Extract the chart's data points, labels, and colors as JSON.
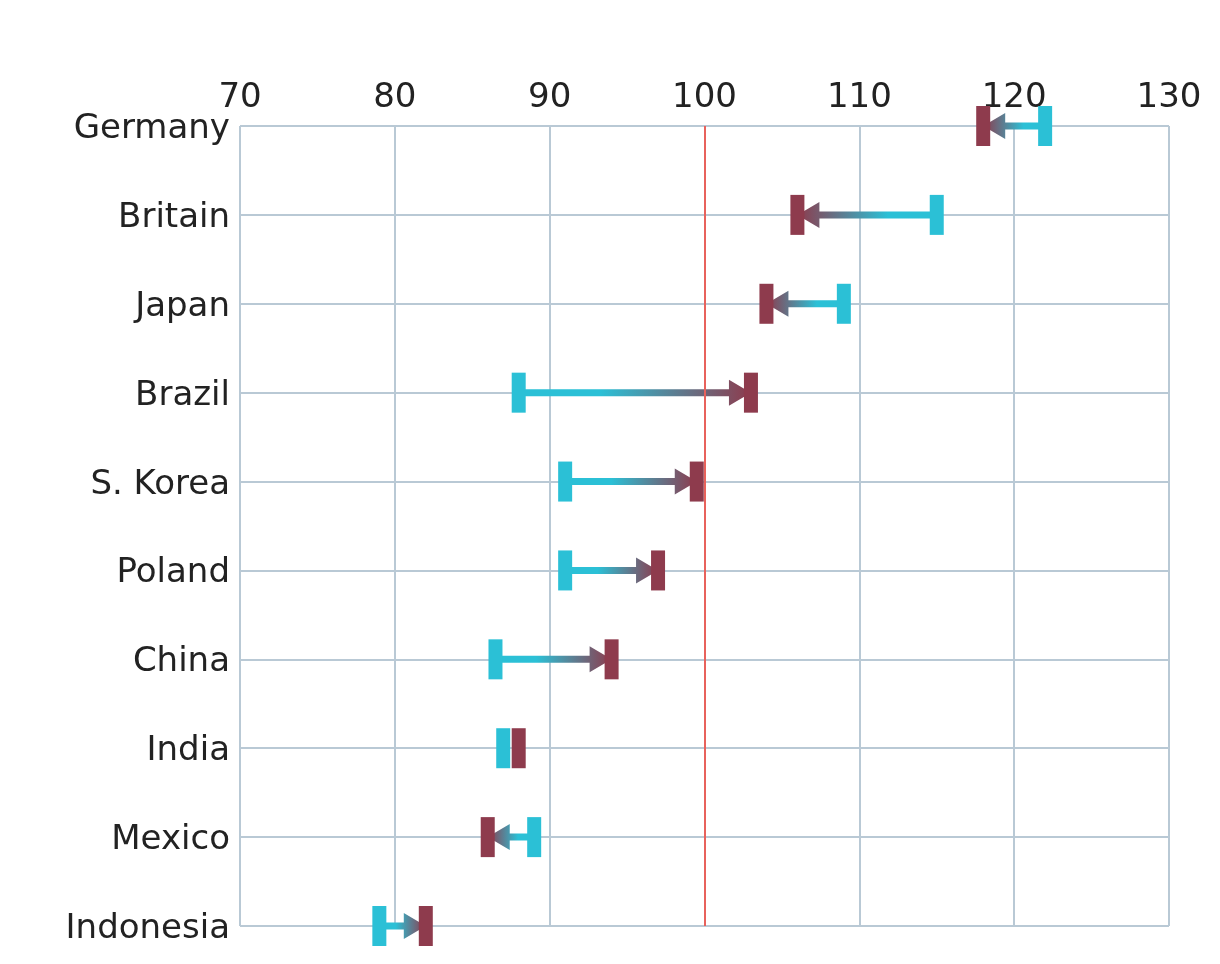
{
  "chart_data": {
    "type": "scatter",
    "orientation": "horizontal",
    "categories": [
      "Germany",
      "Britain",
      "Japan",
      "Brazil",
      "S. Korea",
      "Poland",
      "China",
      "India",
      "Mexico",
      "Indonesia"
    ],
    "series": [
      {
        "color": "#2bc0d6",
        "values": [
          122,
          115,
          109,
          88,
          91,
          91,
          86.5,
          87,
          89,
          79
        ]
      },
      {
        "color": "#8e3b4d",
        "values": [
          118,
          106,
          104,
          103,
          99.5,
          97,
          94,
          88,
          86,
          82
        ]
      }
    ],
    "xlim": [
      70,
      130
    ],
    "xticks": [
      70,
      80,
      90,
      100,
      110,
      120,
      130
    ],
    "grid": true,
    "marker": "square",
    "ref_lines": [
      {
        "axis": "x",
        "value": 100,
        "color": "#e8625c"
      }
    ]
  }
}
